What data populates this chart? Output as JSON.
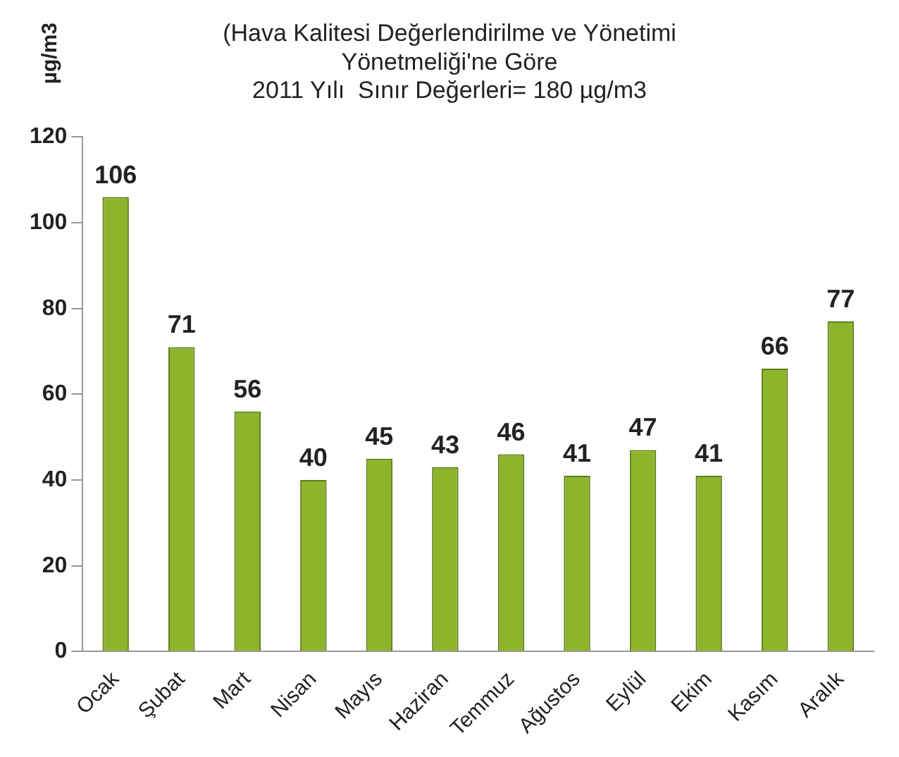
{
  "chart_data": {
    "type": "bar",
    "title": "(Hava Kalitesi Değerlendirilme ve Yönetimi\nYönetmeliği'ne Göre\n2011 Yılı  Sınır Değerleri= 180 µg/m3",
    "ylabel": "µg/m3",
    "categories": [
      "Ocak",
      "Şubat",
      "Mart",
      "Nisan",
      "Mayıs",
      "Haziran",
      "Temmuz",
      "Ağustos",
      "Eylül",
      "Ekim",
      "Kasım",
      "Aralık"
    ],
    "values": [
      106,
      71,
      56,
      40,
      45,
      43,
      46,
      41,
      47,
      41,
      66,
      77
    ],
    "color": "#8db52c",
    "ylim": [
      0,
      120
    ],
    "yticks": [
      0,
      20,
      40,
      60,
      80,
      100,
      120
    ],
    "grid": false,
    "data_labels": true
  }
}
